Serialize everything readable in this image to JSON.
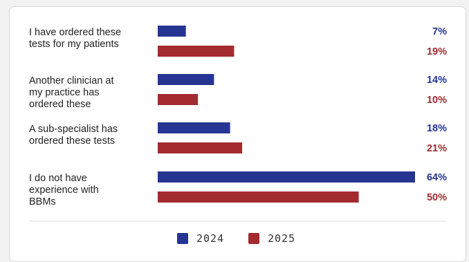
{
  "chart_data": {
    "type": "bar",
    "orientation": "horizontal",
    "categories": [
      [
        "I have ordered these",
        "tests for my patients"
      ],
      [
        "Another clinician at",
        "my practice has",
        "ordered these"
      ],
      [
        "A sub-specialist has",
        "ordered these tests"
      ],
      [
        "I do not have",
        "experience with",
        "BBMs"
      ]
    ],
    "series": [
      {
        "name": "2024",
        "color": "#263592",
        "values": [
          7,
          14,
          18,
          64
        ]
      },
      {
        "name": "2025",
        "color": "#a32a2f",
        "values": [
          19,
          10,
          21,
          50
        ]
      }
    ],
    "value_suffix": "%",
    "xlim": [
      0,
      64
    ],
    "legend_position": "bottom-center",
    "grid": false
  }
}
